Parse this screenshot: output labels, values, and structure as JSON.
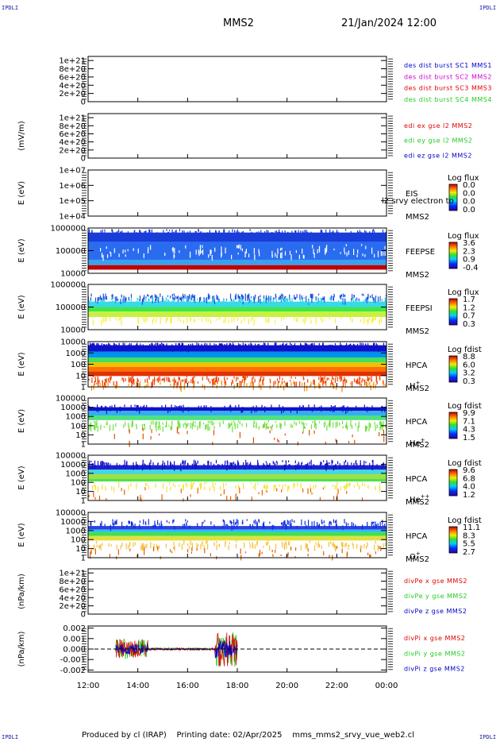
{
  "header": {
    "corner_left_top": "IPDLI",
    "corner_right_top": "IPDLI",
    "corner_left_bottom": "IPDLI",
    "corner_right_bottom": "IPDLI",
    "spacecraft": "MMS2",
    "date": "21/Jan/2024 12:00"
  },
  "footer": {
    "produced_by": "Produced by cl (IRAP)",
    "printing_date": "Printing date: 02/Apr/2025",
    "filename": "mms_mms2_srvy_vue_web2.cl"
  },
  "x_ticks": [
    "12:00",
    "14:00",
    "16:00",
    "18:00",
    "20:00",
    "22:00",
    "00:00"
  ],
  "colors": {
    "red": "#e00000",
    "magenta": "#d000d0",
    "green": "#22cc22",
    "blue": "#0000c8"
  },
  "chart_data": [
    {
      "id": "p1",
      "type": "line",
      "ylabel": "",
      "yticks": [
        "1e+21",
        "8e+20",
        "6e+20",
        "4e+20",
        "2e+20",
        "0"
      ],
      "ylim": [
        0,
        1.1e+21
      ],
      "legend": [
        {
          "text": "des dist burst SC1 MMS1",
          "color": "#0000c8"
        },
        {
          "text": "des dist burst SC2 MMS2",
          "color": "#d000d0"
        },
        {
          "text": "des dist burst SC3 MMS3",
          "color": "#e00000"
        },
        {
          "text": "des dist burst SC4 MMS4",
          "color": "#22cc22"
        }
      ]
    },
    {
      "id": "p2",
      "type": "line",
      "ylabel": "(mV/m)",
      "yticks": [
        "1e+21",
        "8e+20",
        "6e+20",
        "4e+20",
        "2e+20",
        "0"
      ],
      "ylim": [
        0,
        1.1e+21
      ],
      "legend": [
        {
          "text": "edi ex gse l2 MMS2",
          "color": "#e00000"
        },
        {
          "text": "edi ey gse l2 MMS2",
          "color": "#22cc22"
        },
        {
          "text": "edi ez gse l2 MMS2",
          "color": "#0000c8"
        }
      ]
    },
    {
      "id": "p3",
      "type": "heatmap",
      "ylabel": "E (eV)",
      "yticks": [
        "1e+07",
        "1e+06",
        "1e+05",
        "1e+04"
      ],
      "instrument": "EIS",
      "overlay": "l2 srvy electron to",
      "sc": "MMS2",
      "cb_title": "Log flux",
      "cb_ticks": [
        "0.0",
        "0.0",
        "0.0",
        "0.0"
      ]
    },
    {
      "id": "p4",
      "type": "heatmap",
      "ylabel": "E (eV)",
      "yticks": [
        "1000000",
        "100000",
        "10000"
      ],
      "instrument": "FEEPSE",
      "sc": "MMS2",
      "cb_title": "Log flux",
      "cb_ticks": [
        "3.6",
        "2.3",
        "0.9",
        "-0.4"
      ]
    },
    {
      "id": "p5",
      "type": "heatmap",
      "ylabel": "E (eV)",
      "yticks": [
        "1000000",
        "100000",
        "10000"
      ],
      "instrument": "FEEPSI",
      "sc": "MMS2",
      "cb_title": "Log flux",
      "cb_ticks": [
        "1.7",
        "1.2",
        "0.7",
        "0.3"
      ]
    },
    {
      "id": "p6",
      "type": "heatmap",
      "ylabel": "E (eV)",
      "yticks": [
        "10000",
        "1000",
        "100",
        "10",
        "1"
      ],
      "instrument": "HPCA",
      "sc": "MMS2",
      "species": "H",
      "species_sup": "+",
      "cb_title": "Log fdist",
      "cb_ticks": [
        "8.8",
        "6.0",
        "3.2",
        "0.3"
      ]
    },
    {
      "id": "p7",
      "type": "heatmap",
      "ylabel": "E (eV)",
      "yticks": [
        "100000",
        "10000",
        "1000",
        "100",
        "10",
        "1"
      ],
      "instrument": "HPCA",
      "sc": "MMS2",
      "species": "He",
      "species_sup": "+",
      "cb_title": "Log fdist",
      "cb_ticks": [
        "9.9",
        "7.1",
        "4.3",
        "1.5"
      ]
    },
    {
      "id": "p8",
      "type": "heatmap",
      "ylabel": "E (eV)",
      "yticks": [
        "100000",
        "10000",
        "1000",
        "100",
        "10",
        "1"
      ],
      "instrument": "HPCA",
      "sc": "MMS2",
      "species": "He",
      "species_sup": "++",
      "cb_title": "Log fdist",
      "cb_ticks": [
        "9.6",
        "6.8",
        "4.0",
        "1.2"
      ]
    },
    {
      "id": "p9",
      "type": "heatmap",
      "ylabel": "E (eV)",
      "yticks": [
        "100000",
        "10000",
        "1000",
        "100",
        "10",
        "1"
      ],
      "instrument": "HPCA",
      "sc": "MMS2",
      "species": "O",
      "species_sup": "+",
      "cb_title": "Log fdist",
      "cb_ticks": [
        "11.1",
        "8.3",
        "5.5",
        "2.7"
      ]
    },
    {
      "id": "p10",
      "type": "line",
      "ylabel": "(nPa/km)",
      "yticks": [
        "1e+21",
        "8e+20",
        "6e+20",
        "4e+20",
        "2e+20",
        "0"
      ],
      "ylim": [
        0,
        1.1e+21
      ],
      "legend": [
        {
          "text": "divPe x gse MMS2",
          "color": "#e00000"
        },
        {
          "text": "divPe y gse MMS2",
          "color": "#22cc22"
        },
        {
          "text": "divPe z gse MMS2",
          "color": "#0000c8"
        }
      ]
    },
    {
      "id": "p11",
      "type": "line",
      "ylabel": "(nPa/km)",
      "yticks": [
        "0.002",
        "0.001",
        "0.000",
        "-0.001",
        "-0.002"
      ],
      "ylim": [
        -0.0022,
        0.0022
      ],
      "legend": [
        {
          "text": "divPi x gse MMS2",
          "color": "#e00000"
        },
        {
          "text": "divPi y gse MMS2",
          "color": "#22cc22"
        },
        {
          "text": "divPi z gse MMS2",
          "color": "#0000c8"
        }
      ]
    }
  ]
}
